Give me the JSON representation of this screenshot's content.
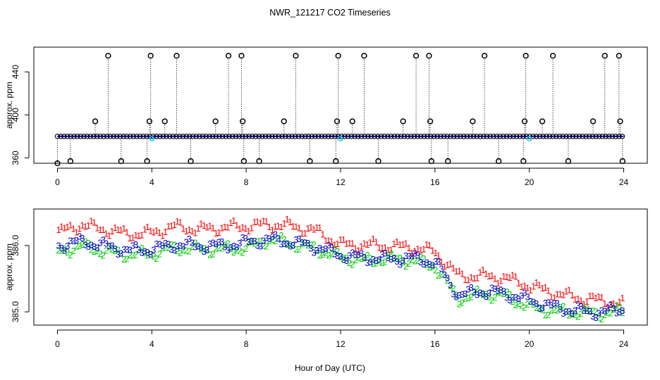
{
  "title": "NWR_121217  CO2 Timeseries",
  "shared_xlabel": "Hour of Day (UTC)",
  "colors": {
    "series1": "#ff0000",
    "series2": "#00cc00",
    "series3": "#0000cc",
    "upper_points": "#000000",
    "upper_line": "#0000ff",
    "upper_marker_cyan": "#00c8ff"
  },
  "chart_data": [
    {
      "type": "scatter",
      "ylabel": "approx. ppm",
      "xlim": [
        -1,
        25
      ],
      "ylim": [
        355,
        463
      ],
      "x_ticks": [
        0,
        4,
        8,
        12,
        16,
        20,
        24
      ],
      "x_tick_labels": [
        "0",
        "4",
        "8",
        "12",
        "16",
        "20",
        "24"
      ],
      "y_ticks": [
        360,
        400,
        440
      ],
      "y_tick_labels": [
        "360",
        "400",
        "440"
      ],
      "grid": false,
      "baseline": {
        "name": "",
        "x_range": [
          0,
          24
        ],
        "value": 380
      },
      "baseline_interval_hours": 0.14,
      "spikes": [
        {
          "x": 0.0,
          "y": 355
        },
        {
          "x": 0.55,
          "y": 357
        },
        {
          "x": 1.6,
          "y": 394
        },
        {
          "x": 2.15,
          "y": 455
        },
        {
          "x": 2.7,
          "y": 357
        },
        {
          "x": 3.8,
          "y": 357
        },
        {
          "x": 3.9,
          "y": 394
        },
        {
          "x": 3.95,
          "y": 455
        },
        {
          "x": 4.55,
          "y": 394
        },
        {
          "x": 5.05,
          "y": 455
        },
        {
          "x": 5.65,
          "y": 357
        },
        {
          "x": 6.7,
          "y": 394
        },
        {
          "x": 7.25,
          "y": 455
        },
        {
          "x": 7.8,
          "y": 455
        },
        {
          "x": 7.85,
          "y": 394
        },
        {
          "x": 7.9,
          "y": 357
        },
        {
          "x": 8.55,
          "y": 357
        },
        {
          "x": 9.6,
          "y": 394
        },
        {
          "x": 10.1,
          "y": 455
        },
        {
          "x": 10.7,
          "y": 357
        },
        {
          "x": 11.8,
          "y": 357
        },
        {
          "x": 11.85,
          "y": 394
        },
        {
          "x": 11.9,
          "y": 455
        },
        {
          "x": 12.5,
          "y": 394
        },
        {
          "x": 13.0,
          "y": 455
        },
        {
          "x": 13.6,
          "y": 357
        },
        {
          "x": 14.65,
          "y": 394
        },
        {
          "x": 15.2,
          "y": 455
        },
        {
          "x": 15.75,
          "y": 455
        },
        {
          "x": 15.8,
          "y": 394
        },
        {
          "x": 15.85,
          "y": 357
        },
        {
          "x": 16.55,
          "y": 357
        },
        {
          "x": 17.6,
          "y": 394
        },
        {
          "x": 18.1,
          "y": 455
        },
        {
          "x": 18.7,
          "y": 357
        },
        {
          "x": 19.75,
          "y": 357
        },
        {
          "x": 19.8,
          "y": 394
        },
        {
          "x": 19.85,
          "y": 455
        },
        {
          "x": 20.55,
          "y": 394
        },
        {
          "x": 21.0,
          "y": 455
        },
        {
          "x": 21.65,
          "y": 357
        },
        {
          "x": 22.7,
          "y": 394
        },
        {
          "x": 23.2,
          "y": 455
        },
        {
          "x": 23.8,
          "y": 455
        },
        {
          "x": 23.85,
          "y": 394
        },
        {
          "x": 23.95,
          "y": 357
        }
      ],
      "cyan_markers": [
        {
          "x": 4.0,
          "y": 378
        },
        {
          "x": 12.0,
          "y": 378
        },
        {
          "x": 20.0,
          "y": 378
        }
      ]
    },
    {
      "type": "scatter",
      "ylabel": "approx. ppm",
      "xlim": [
        -1,
        25
      ],
      "ylim": [
        384.8,
        386.55
      ],
      "x_ticks": [
        0,
        4,
        8,
        12,
        16,
        20,
        24
      ],
      "x_tick_labels": [
        "0",
        "4",
        "8",
        "12",
        "16",
        "20",
        "24"
      ],
      "y_ticks": [
        385.0,
        386.0
      ],
      "y_tick_labels": [
        "385.0",
        "386.0"
      ],
      "grid": false,
      "series": [
        {
          "marker": "1",
          "color": "#ff0000",
          "x": [
            0,
            1,
            2,
            3,
            4,
            5,
            6,
            7,
            8,
            9,
            10,
            11,
            12,
            13,
            14,
            15,
            16,
            17,
            18,
            19,
            20,
            21,
            22,
            23,
            24
          ],
          "y": [
            386.2,
            386.32,
            386.25,
            386.18,
            386.2,
            386.3,
            386.25,
            386.28,
            386.3,
            386.33,
            386.3,
            386.22,
            386.02,
            386.02,
            386.0,
            385.98,
            385.92,
            385.55,
            385.55,
            385.52,
            385.4,
            385.3,
            385.22,
            385.18,
            385.12
          ]
        },
        {
          "marker": "2",
          "color": "#00cc00",
          "x": [
            0,
            1,
            2,
            3,
            4,
            5,
            6,
            7,
            8,
            9,
            10,
            11,
            12,
            13,
            14,
            15,
            16,
            17,
            18,
            19,
            20,
            21,
            22,
            23,
            24
          ],
          "y": [
            385.9,
            386.0,
            385.92,
            385.87,
            385.88,
            385.97,
            385.95,
            385.95,
            385.97,
            386.1,
            386.03,
            385.95,
            385.83,
            385.78,
            385.8,
            385.78,
            385.7,
            385.2,
            385.28,
            385.25,
            385.08,
            385.02,
            385.0,
            384.98,
            385.02
          ]
        },
        {
          "marker": "3",
          "color": "#0000cc",
          "x": [
            0,
            1,
            2,
            3,
            4,
            5,
            6,
            7,
            8,
            9,
            10,
            11,
            12,
            13,
            14,
            15,
            16,
            17,
            18,
            19,
            20,
            21,
            22,
            23,
            24
          ],
          "y": [
            386.0,
            386.07,
            386.0,
            385.93,
            385.95,
            386.02,
            386.0,
            386.0,
            386.05,
            386.1,
            386.05,
            385.98,
            385.86,
            385.82,
            385.8,
            385.82,
            385.75,
            385.25,
            385.32,
            385.28,
            385.18,
            385.08,
            385.02,
            385.0,
            385.05
          ]
        }
      ]
    }
  ]
}
